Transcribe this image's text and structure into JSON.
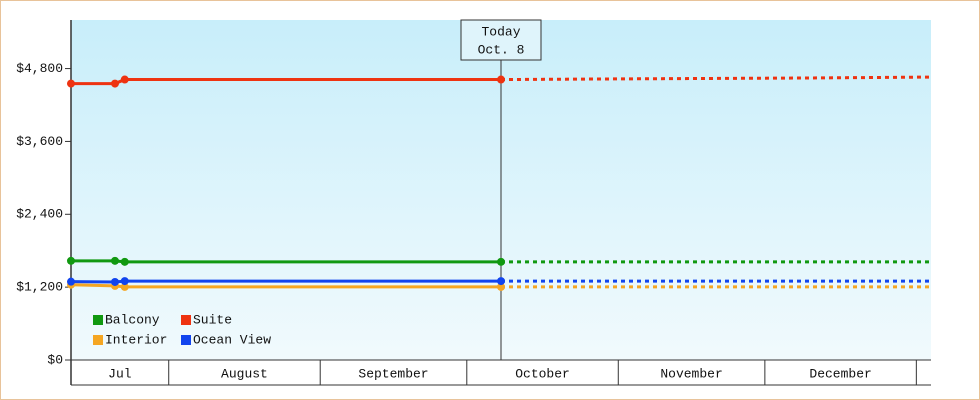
{
  "chart_data": {
    "type": "line",
    "xlim": [
      "07-12",
      "01-04"
    ],
    "ylim": [
      0,
      5600
    ],
    "yticks": [
      {
        "value": 0,
        "label": "$0"
      },
      {
        "value": 1200,
        "label": "$1,200"
      },
      {
        "value": 2400,
        "label": "$2,400"
      },
      {
        "value": 3600,
        "label": "$3,600"
      },
      {
        "value": 4800,
        "label": "$4,800"
      }
    ],
    "xticks": [
      {
        "value": "07-01",
        "label": "Jul"
      },
      {
        "value": "08-01",
        "label": "August"
      },
      {
        "value": "09-01",
        "label": "September"
      },
      {
        "value": "10-01",
        "label": "October"
      },
      {
        "value": "11-01",
        "label": "November"
      },
      {
        "value": "12-01",
        "label": "December"
      },
      {
        "value": "01-01",
        "label": null
      }
    ],
    "today": {
      "x": "10-08",
      "label": "Today",
      "date_label": "Oct. 8"
    },
    "series": [
      {
        "name": "Balcony",
        "color": "#119911",
        "x": [
          "07-12",
          "07-21",
          "07-23",
          "10-08",
          "01-04"
        ],
        "values": [
          1633,
          1633,
          1617,
          1617,
          1617
        ]
      },
      {
        "name": "Suite",
        "color": "#ee3311",
        "x": [
          "07-12",
          "07-21",
          "07-23",
          "10-08",
          "11-01",
          "12-10",
          "01-04"
        ],
        "values": [
          4553,
          4553,
          4619,
          4619,
          4630,
          4645,
          4660
        ]
      },
      {
        "name": "Interior",
        "color": "#f5a623",
        "x": [
          "07-12",
          "07-21",
          "07-23",
          "10-08",
          "01-04"
        ],
        "values": [
          1240,
          1220,
          1204,
          1204,
          1204
        ]
      },
      {
        "name": "Ocean View",
        "color": "#1144ee",
        "x": [
          "07-12",
          "07-21",
          "07-23",
          "10-08",
          "01-04"
        ],
        "values": [
          1290,
          1285,
          1300,
          1300,
          1300
        ]
      }
    ]
  }
}
